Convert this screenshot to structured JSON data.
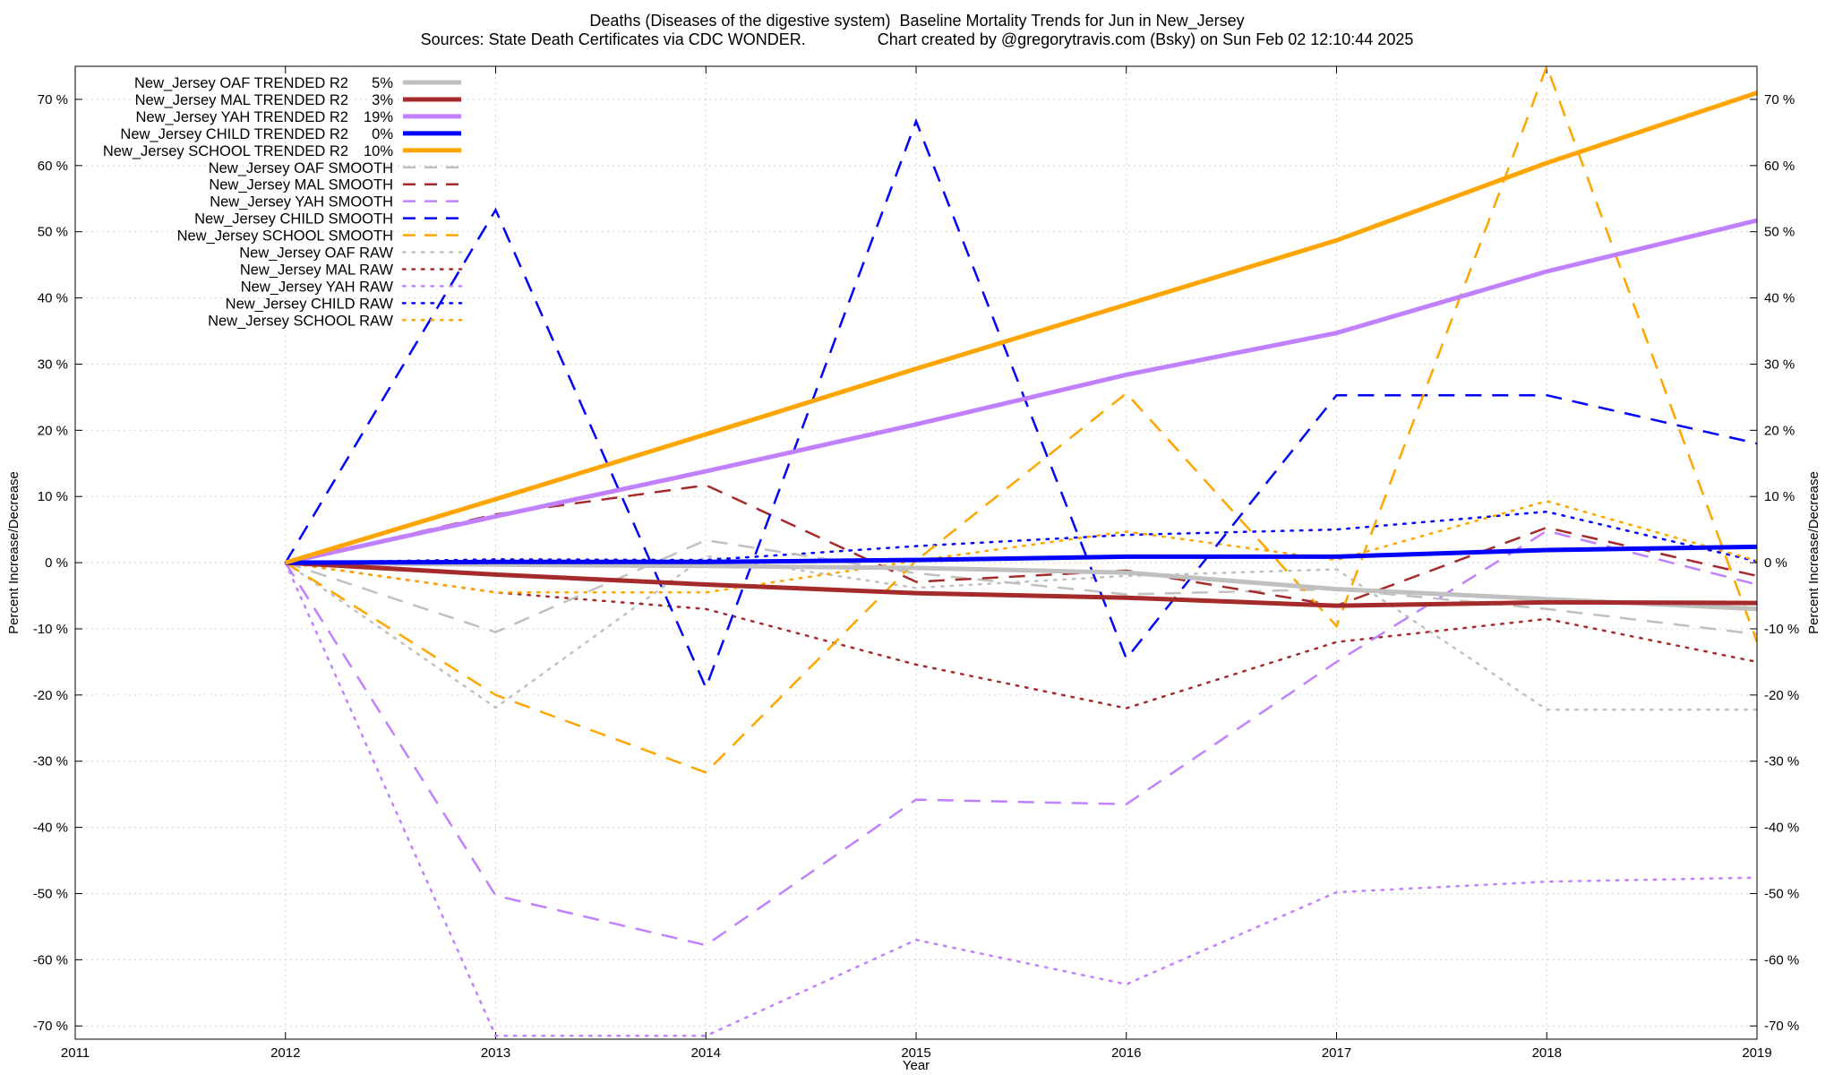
{
  "title_line1": "Deaths (Diseases of the digestive system)  Baseline Mortality Trends for Jun in New_Jersey",
  "title_line2": "Sources: State Death Certificates via CDC WONDER.                Chart created by @gregorytravis.com (Bsky) on Sun Feb 02 12:10:44 2025",
  "chart_data": {
    "type": "line",
    "xlabel": "Year",
    "ylabel": "Percent Increase/Decrease",
    "ylabel_right": "Percent Increase/Decrease",
    "xlim": [
      2011,
      2019
    ],
    "ylim": [
      -72,
      75
    ],
    "x_ticks": [
      "2011",
      "2012",
      "2013",
      "2014",
      "2015",
      "2016",
      "2017",
      "2018",
      "2019"
    ],
    "y_ticks": [
      "70 %",
      "60 %",
      "50 %",
      "40 %",
      "30 %",
      "20 %",
      "10 %",
      "0 %",
      "-10 %",
      "-20 %",
      "-30 %",
      "-40 %",
      "-50 %",
      "-60 %",
      "-70 %"
    ],
    "y_tick_values": [
      70,
      60,
      50,
      40,
      30,
      20,
      10,
      0,
      -10,
      -20,
      -30,
      -40,
      -50,
      -60,
      -70
    ],
    "grid": true,
    "legend_position": "top-left",
    "x": [
      2012,
      2013,
      2014,
      2015,
      2016,
      2017,
      2018,
      2019
    ],
    "series": [
      {
        "name": "New_Jersey OAF TRENDED R2",
        "r2": "5%",
        "color": "#c0c0c0",
        "style": "solid",
        "width": 5,
        "values": [
          0,
          -0.3,
          -0.5,
          -0.8,
          -1.5,
          -4.0,
          -5.5,
          -7.0
        ]
      },
      {
        "name": "New_Jersey MAL TRENDED R2",
        "r2": "3%",
        "color": "#a52a2a",
        "style": "solid",
        "width": 5,
        "values": [
          0,
          -1.8,
          -3.3,
          -4.6,
          -5.3,
          -6.5,
          -6.0,
          -6.1
        ]
      },
      {
        "name": "New_Jersey YAH TRENDED R2",
        "r2": "19%",
        "color": "#c080ff",
        "style": "solid",
        "width": 5,
        "values": [
          0,
          7.0,
          13.8,
          20.9,
          28.4,
          34.7,
          44.0,
          51.7
        ]
      },
      {
        "name": "New_Jersey CHILD TRENDED R2",
        "r2": "0%",
        "color": "#0000ff",
        "style": "solid",
        "width": 5,
        "values": [
          0,
          0.1,
          0.1,
          0.4,
          0.9,
          0.9,
          1.9,
          2.4
        ]
      },
      {
        "name": "New_Jersey SCHOOL TRENDED R2",
        "r2": "10%",
        "color": "#ffa500",
        "style": "solid",
        "width": 5,
        "values": [
          0,
          9.6,
          19.4,
          29.3,
          39.0,
          48.7,
          60.4,
          71.0
        ]
      },
      {
        "name": "New_Jersey OAF SMOOTH",
        "color": "#c0c0c0",
        "style": "dashed",
        "width": 2.5,
        "values": [
          0,
          -10.5,
          3.4,
          -1.6,
          -4.8,
          -4.0,
          -7.0,
          -10.8
        ]
      },
      {
        "name": "New_Jersey MAL SMOOTH",
        "color": "#a52a2a",
        "style": "dashed",
        "width": 2.5,
        "values": [
          0,
          7.3,
          11.7,
          -2.9,
          -1.2,
          -6.5,
          5.3,
          -2.0
        ]
      },
      {
        "name": "New_Jersey YAH SMOOTH",
        "color": "#c080ff",
        "style": "dashed",
        "width": 2.5,
        "values": [
          0,
          -50.3,
          -57.8,
          -35.8,
          -36.5,
          -15.0,
          4.8,
          -3.3
        ]
      },
      {
        "name": "New_Jersey CHILD SMOOTH",
        "color": "#0000ff",
        "style": "dashed",
        "width": 2.5,
        "values": [
          0,
          53.3,
          -18.9,
          66.7,
          -14.5,
          25.3,
          25.3,
          18.0
        ]
      },
      {
        "name": "New_Jersey SCHOOL SMOOTH",
        "color": "#ffa500",
        "style": "dashed",
        "width": 2.5,
        "values": [
          0,
          -20.0,
          -31.7,
          0.3,
          25.6,
          -9.6,
          75.0,
          -12.0
        ]
      },
      {
        "name": "New_Jersey OAF RAW",
        "color": "#c0c0c0",
        "style": "dotted",
        "width": 2.5,
        "values": [
          0,
          -21.9,
          1.0,
          -3.8,
          -2.0,
          -1.0,
          -22.2,
          -22.2
        ]
      },
      {
        "name": "New_Jersey MAL RAW",
        "color": "#a52a2a",
        "style": "dotted",
        "width": 2.5,
        "values": [
          0,
          -4.5,
          -7.0,
          -15.4,
          -22.0,
          -12.0,
          -8.5,
          -15.0
        ]
      },
      {
        "name": "New_Jersey YAH RAW",
        "color": "#c080ff",
        "style": "dotted",
        "width": 2.5,
        "values": [
          0,
          -71.5,
          -71.5,
          -57.0,
          -63.7,
          -49.8,
          -48.2,
          -47.6
        ]
      },
      {
        "name": "New_Jersey CHILD RAW",
        "color": "#0000ff",
        "style": "dotted",
        "width": 2.5,
        "values": [
          0,
          0.5,
          0.4,
          2.5,
          4.2,
          5.0,
          7.7,
          0.2
        ]
      },
      {
        "name": "New_Jersey SCHOOL RAW",
        "color": "#ffa500",
        "style": "dotted",
        "width": 2.5,
        "values": [
          0,
          -4.5,
          -4.5,
          0.3,
          4.7,
          0.4,
          9.3,
          0.3
        ]
      }
    ]
  }
}
